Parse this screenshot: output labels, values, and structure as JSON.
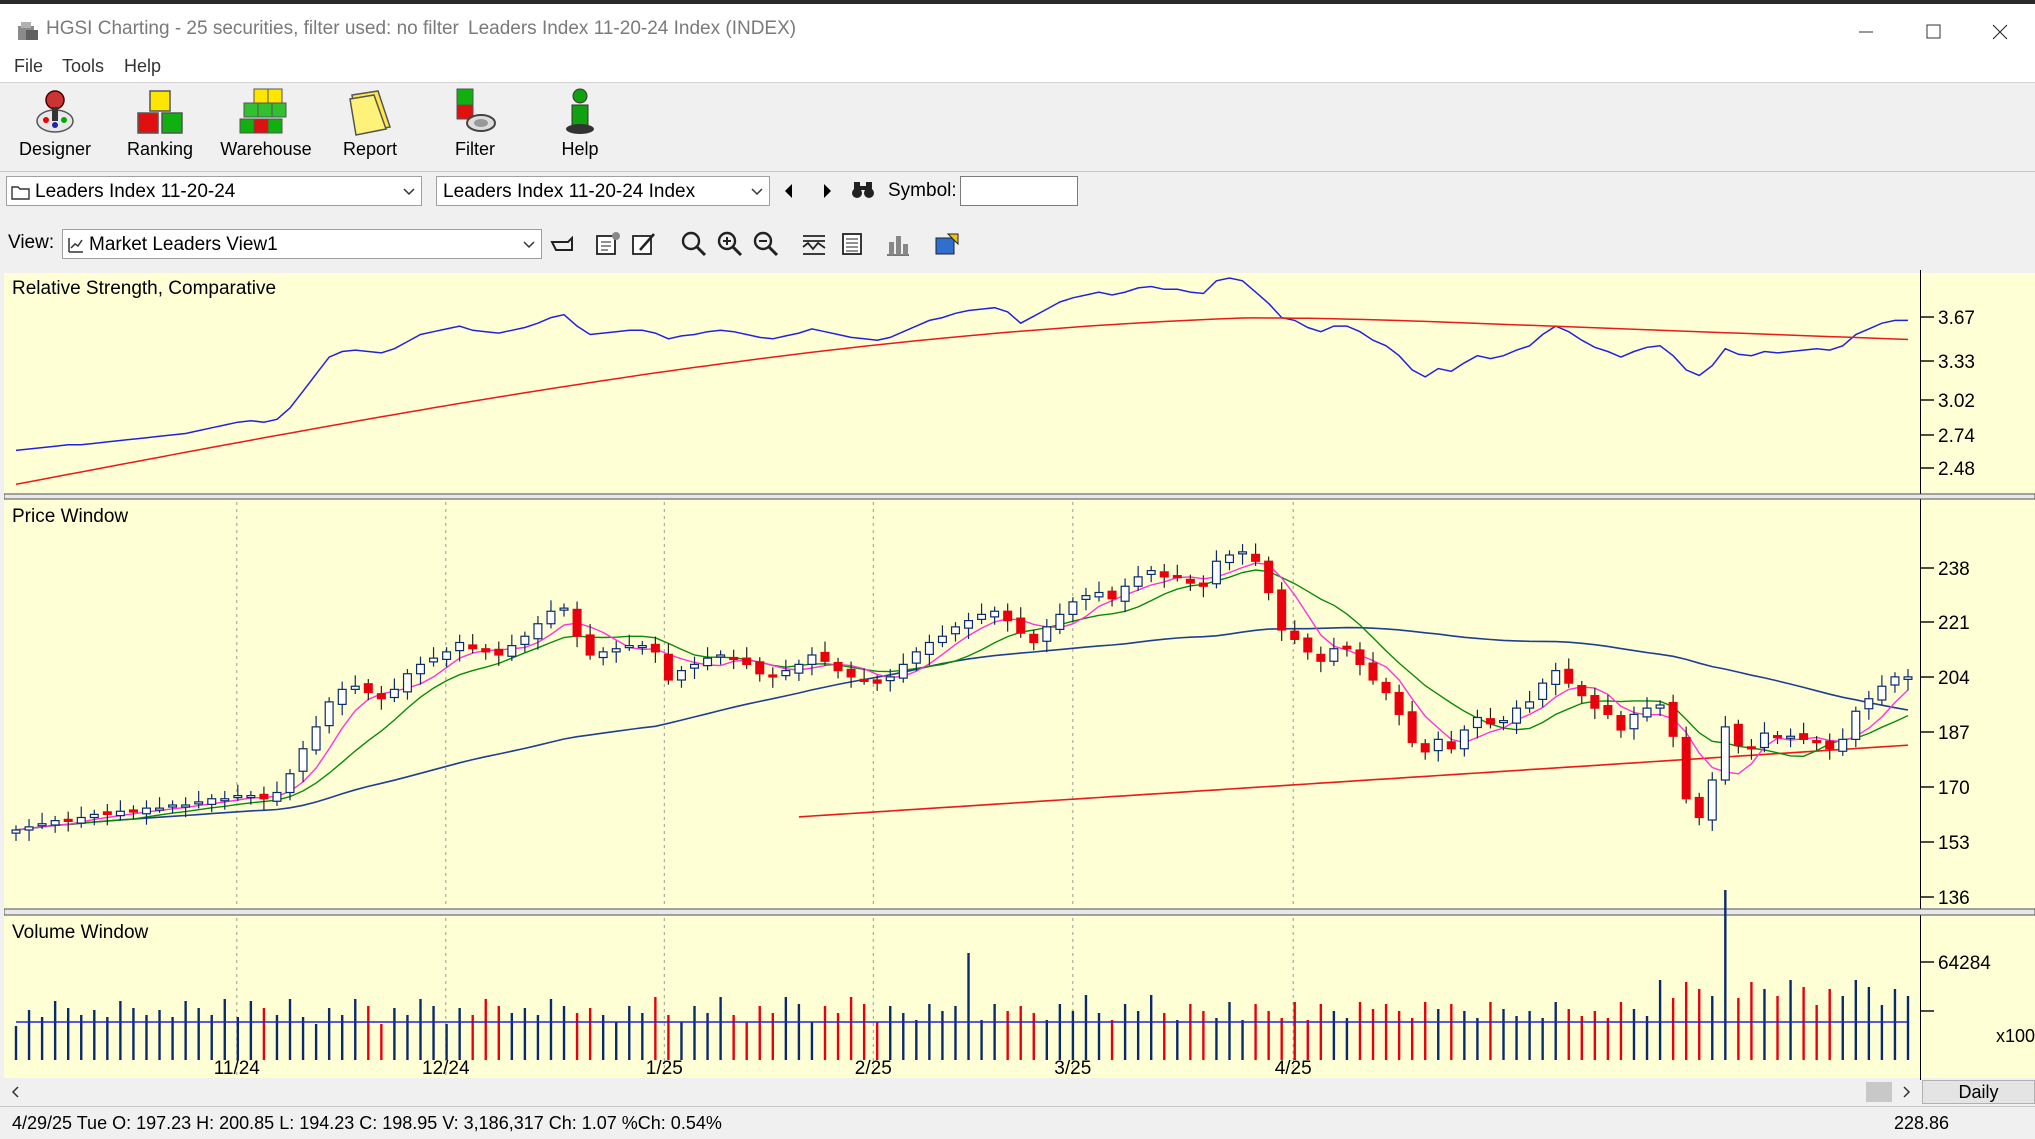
{
  "window": {
    "title": "HGSI Charting - 25 securities, filter used: no filter",
    "document": "Leaders Index 11-20-24 Index (INDEX)"
  },
  "menu": [
    "File",
    "Tools",
    "Help"
  ],
  "toolbar": [
    {
      "label": "Designer",
      "icon": "designer-icon"
    },
    {
      "label": "Ranking",
      "icon": "ranking-icon"
    },
    {
      "label": "Warehouse",
      "icon": "warehouse-icon"
    },
    {
      "label": "Report",
      "icon": "report-icon"
    },
    {
      "label": "Filter",
      "icon": "filter-icon"
    },
    {
      "label": "Help",
      "icon": "help-icon"
    }
  ],
  "selectors": {
    "folder": "Leaders Index 11-20-24",
    "security": "Leaders Index 11-20-24 Index",
    "symbol_label": "Symbol:",
    "symbol_value": ""
  },
  "view": {
    "label": "View:",
    "selected": "Market Leaders View1"
  },
  "panes": {
    "rs_title": "Relative Strength, Comparative",
    "price_title": "Price Window",
    "volume_title": "Volume Window"
  },
  "colors": {
    "pane_bg": "#ffffd6",
    "up": "#0b2a6b",
    "down": "#e8000d",
    "ma_short": "#ff33dd",
    "ma_mid": "#0a8a0a",
    "ma_long": "#1f3f8f",
    "ma_200": "#e81a1a"
  },
  "axes": {
    "rs_ticks": [
      "3.67",
      "3.33",
      "3.02",
      "2.74",
      "2.48"
    ],
    "price_ticks": [
      "238",
      "221",
      "204",
      "187",
      "170",
      "153",
      "136"
    ],
    "volume_ticks": [
      "64284"
    ],
    "volume_multiplier": "x100",
    "x_labels": [
      "11/24",
      "12/24",
      "1/25",
      "2/25",
      "3/25",
      "4/25"
    ]
  },
  "chart_data": {
    "type": "candlestick",
    "price_ylim": [
      128,
      256
    ],
    "rs_ylim": [
      2.4,
      3.9
    ],
    "candles_close": [
      152,
      153,
      154,
      155,
      155,
      156,
      157,
      157,
      158,
      158,
      159,
      159,
      160,
      160,
      161,
      162,
      162,
      163,
      163,
      162,
      164,
      170,
      178,
      185,
      193,
      197,
      198,
      196,
      194,
      197,
      202,
      205,
      207,
      209,
      212,
      210,
      209,
      208,
      211,
      214,
      218,
      222,
      223,
      214,
      208,
      209,
      210,
      211,
      211,
      209,
      200,
      203,
      205,
      207,
      208,
      207,
      205,
      202,
      201,
      203,
      205,
      208,
      206,
      203,
      201,
      200,
      199,
      201,
      205,
      209,
      212,
      214,
      217,
      219,
      221,
      222,
      219,
      215,
      212,
      217,
      221,
      225,
      227,
      228,
      226,
      230,
      233,
      235,
      233,
      233,
      231,
      230,
      238,
      240,
      241,
      238,
      228,
      216,
      213,
      209,
      206,
      210,
      210,
      205,
      200,
      196,
      189,
      180,
      177,
      181,
      178,
      184,
      188,
      186,
      187,
      191,
      193,
      199,
      203,
      199,
      195,
      191,
      189,
      184,
      189,
      191,
      192,
      182,
      162,
      156,
      168,
      185,
      179,
      178,
      183,
      182,
      182,
      181,
      180,
      178,
      181,
      190,
      194,
      198,
      201,
      201
    ],
    "rs_line": [
      2.68,
      2.69,
      2.7,
      2.71,
      2.72,
      2.72,
      2.73,
      2.74,
      2.75,
      2.76,
      2.77,
      2.78,
      2.79,
      2.8,
      2.82,
      2.84,
      2.86,
      2.88,
      2.89,
      2.88,
      2.9,
      2.98,
      3.1,
      3.22,
      3.34,
      3.38,
      3.39,
      3.38,
      3.37,
      3.4,
      3.45,
      3.5,
      3.52,
      3.54,
      3.56,
      3.53,
      3.52,
      3.51,
      3.53,
      3.55,
      3.58,
      3.62,
      3.64,
      3.56,
      3.5,
      3.51,
      3.52,
      3.53,
      3.53,
      3.51,
      3.47,
      3.49,
      3.5,
      3.52,
      3.53,
      3.52,
      3.5,
      3.48,
      3.47,
      3.49,
      3.51,
      3.54,
      3.52,
      3.5,
      3.48,
      3.47,
      3.46,
      3.48,
      3.52,
      3.56,
      3.6,
      3.62,
      3.65,
      3.67,
      3.68,
      3.69,
      3.66,
      3.58,
      3.63,
      3.68,
      3.73,
      3.76,
      3.78,
      3.8,
      3.78,
      3.8,
      3.83,
      3.84,
      3.82,
      3.82,
      3.8,
      3.79,
      3.88,
      3.9,
      3.88,
      3.8,
      3.72,
      3.62,
      3.6,
      3.55,
      3.52,
      3.56,
      3.56,
      3.52,
      3.46,
      3.42,
      3.35,
      3.25,
      3.2,
      3.26,
      3.24,
      3.3,
      3.35,
      3.33,
      3.35,
      3.39,
      3.42,
      3.5,
      3.56,
      3.52,
      3.46,
      3.41,
      3.38,
      3.34,
      3.38,
      3.41,
      3.42,
      3.35,
      3.25,
      3.21,
      3.28,
      3.4,
      3.36,
      3.35,
      3.38,
      3.37,
      3.38,
      3.39,
      3.4,
      3.39,
      3.42,
      3.5,
      3.54,
      3.58,
      3.6,
      3.6
    ]
  },
  "status": {
    "text": "4/29/25 Tue O: 197.23 H: 200.85 L: 194.23 C: 198.95 V: 3,186,317 Ch: 1.07 %Ch: 0.54%",
    "right": "228.86",
    "period": "Daily"
  }
}
